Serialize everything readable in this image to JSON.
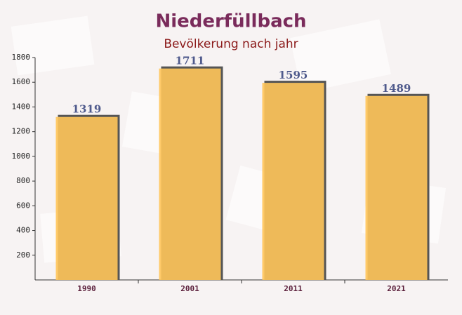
{
  "chart_data": {
    "type": "bar",
    "title": "Niederfüllbach",
    "subtitle": "Bevölkerung nach jahr",
    "categories": [
      "1990",
      "2001",
      "2011",
      "2021"
    ],
    "values": [
      1319,
      1711,
      1595,
      1489
    ],
    "color": "#ffc55a",
    "ylim": [
      0,
      1800
    ],
    "yticks": [
      200,
      400,
      600,
      800,
      1000,
      1200,
      1400,
      1600,
      1800
    ]
  }
}
